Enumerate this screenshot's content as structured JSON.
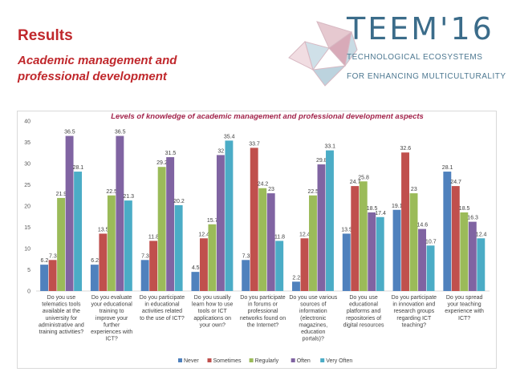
{
  "slide": {
    "title": "Results",
    "subtitle_line1": "Academic management and",
    "subtitle_line2": "professional development"
  },
  "logo": {
    "word": "TEEM'16",
    "tag_line1": "TECHNOLOGICAL ECOSYSTEMS",
    "tag_line2": "FOR ENHANCING MULTICULTURALITY"
  },
  "colors": {
    "title": "#c0282c",
    "never": "#4f81bd",
    "sometimes": "#c0504d",
    "regularly": "#9bbb59",
    "often": "#8064a2",
    "very_often": "#4bacc6"
  },
  "chart_data": {
    "type": "bar",
    "title": "Levels of knowledge of academic management and professional development aspects",
    "ylim": [
      0,
      40
    ],
    "yticks": [
      "0",
      "5",
      "10",
      "15",
      "20",
      "25",
      "30",
      "35",
      "40"
    ],
    "legend_position": "bottom",
    "categories": [
      [
        "Do you use",
        "telematics tools",
        "available at the",
        "university for",
        "administrative and",
        "training activities?"
      ],
      [
        "Do you evaluate",
        "your educational",
        "training to",
        "improve your",
        "further",
        "experiences with",
        "ICT?"
      ],
      [
        "Do you participate",
        "in educational",
        "activities related",
        "to the use of ICT?"
      ],
      [
        "Do you usually",
        "learn how to use",
        "tools or ICT",
        "applications on",
        "your own?"
      ],
      [
        "Do you participate",
        "in forums or",
        "professional",
        "networks found on",
        "the Internet?"
      ],
      [
        "Do you use various",
        "sources of",
        "information",
        "(electronic",
        "magazines,",
        "education",
        "portals)?"
      ],
      [
        "Do you use",
        "educational",
        "platforms and",
        "repositories of",
        "digital resources"
      ],
      [
        "Do you participate",
        "in innovation and",
        "research groups",
        "regarding ICT",
        "teaching?"
      ],
      [
        "Do you spread",
        "your teaching",
        "experience with",
        "ICT?"
      ]
    ],
    "series": [
      {
        "name": "Never",
        "color": "#4f81bd",
        "values": [
          6.2,
          6.2,
          7.3,
          4.5,
          7.3,
          2.2,
          13.5,
          19.1,
          28.1
        ],
        "labels": [
          "6.2",
          "6.2",
          "7.3",
          "4.5",
          "7.3",
          "2.2",
          "13.5",
          "19.1",
          "28.1"
        ]
      },
      {
        "name": "Sometimes",
        "color": "#c0504d",
        "values": [
          7.3,
          13.5,
          11.8,
          12.4,
          33.7,
          12.4,
          24.7,
          32.6,
          24.7
        ],
        "labels": [
          "7.3",
          "13.5",
          "11.8",
          "12.4",
          "33.7",
          "12.4",
          "24.7",
          "32.6",
          "24.7"
        ]
      },
      {
        "name": "Regularly",
        "color": "#9bbb59",
        "values": [
          21.9,
          22.5,
          29.2,
          15.7,
          24.2,
          22.5,
          25.8,
          23,
          18.5
        ],
        "labels": [
          "21.9",
          "22.5",
          "29.2",
          "15.7",
          "24.2",
          "22.5",
          "25.8",
          "23",
          "18.5"
        ]
      },
      {
        "name": "Often",
        "color": "#8064a2",
        "values": [
          36.5,
          36.5,
          31.5,
          32,
          23,
          29.8,
          18.5,
          14.6,
          16.3
        ],
        "labels": [
          "36.5",
          "36.5",
          "31.5",
          "32",
          "23",
          "29.8",
          "18.5",
          "14.6",
          "16.3"
        ]
      },
      {
        "name": "Very Often",
        "color": "#4bacc6",
        "values": [
          28.1,
          21.3,
          20.2,
          35.4,
          11.8,
          33.1,
          17.4,
          10.7,
          12.4
        ],
        "labels": [
          "28.1",
          "21.3",
          "20.2",
          "35.4",
          "11.8",
          "33.1",
          "17.4",
          "10.7",
          "12.4"
        ]
      }
    ]
  }
}
